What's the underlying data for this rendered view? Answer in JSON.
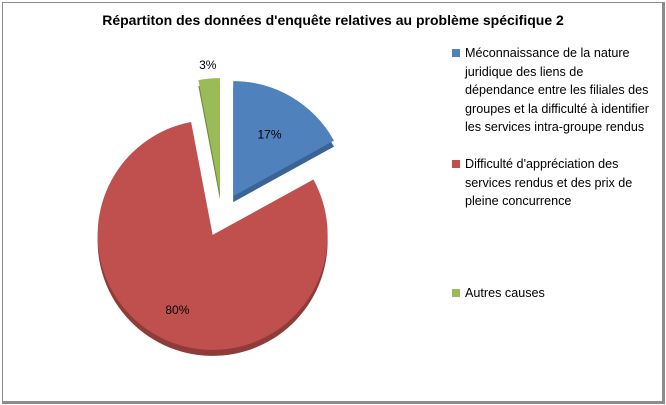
{
  "chart_data": {
    "type": "pie",
    "title": "Répartiton des données d'enquête relatives au problème spécifique 2",
    "legend_position": "right",
    "exploded": true,
    "slices": [
      {
        "label": "Méconnaissance de la nature juridique des liens de dépendance entre les filiales des groupes et la difficulté à identifier les services intra-groupe rendus",
        "value": 17,
        "data_label": "17%",
        "color": "#4f81bd",
        "dark": "#3a6496"
      },
      {
        "label": "Difficulté d'appréciation des services rendus et des prix de pleine concurrence",
        "value": 80,
        "data_label": "80%",
        "color": "#c0504d",
        "dark": "#8f3b39"
      },
      {
        "label": "Autres causes",
        "value": 3,
        "data_label": "3%",
        "color": "#9bbb59",
        "dark": "#6d8a3a"
      }
    ]
  }
}
